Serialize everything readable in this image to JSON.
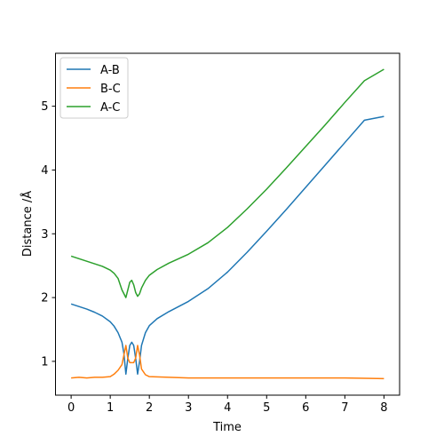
{
  "chart_data": {
    "type": "line",
    "title": "",
    "xlabel": "Time",
    "ylabel": "Distance /Å",
    "xlim": [
      -0.4,
      8.4
    ],
    "ylim": [
      0.47,
      5.83
    ],
    "xticks": [
      "0",
      "1",
      "2",
      "3",
      "4",
      "5",
      "6",
      "7",
      "8"
    ],
    "yticks": [
      "1",
      "2",
      "3",
      "4",
      "5"
    ],
    "grid": false,
    "legend_position": "top-left",
    "series": [
      {
        "name": "A-B",
        "color": "#1f77b4",
        "points": [
          [
            0,
            1.9
          ],
          [
            0.2,
            1.86
          ],
          [
            0.4,
            1.82
          ],
          [
            0.6,
            1.77
          ],
          [
            0.8,
            1.71
          ],
          [
            1.0,
            1.62
          ],
          [
            1.1,
            1.55
          ],
          [
            1.2,
            1.45
          ],
          [
            1.3,
            1.3
          ],
          [
            1.35,
            1.12
          ],
          [
            1.4,
            0.8
          ],
          [
            1.45,
            1.05
          ],
          [
            1.5,
            1.25
          ],
          [
            1.55,
            1.3
          ],
          [
            1.6,
            1.25
          ],
          [
            1.65,
            1.05
          ],
          [
            1.7,
            0.8
          ],
          [
            1.75,
            1.0
          ],
          [
            1.8,
            1.25
          ],
          [
            1.9,
            1.45
          ],
          [
            2.0,
            1.56
          ],
          [
            2.2,
            1.67
          ],
          [
            2.5,
            1.78
          ],
          [
            3.0,
            1.94
          ],
          [
            3.5,
            2.14
          ],
          [
            4.0,
            2.4
          ],
          [
            4.5,
            2.71
          ],
          [
            5.0,
            3.04
          ],
          [
            5.5,
            3.38
          ],
          [
            6.0,
            3.73
          ],
          [
            6.5,
            4.08
          ],
          [
            7.0,
            4.43
          ],
          [
            7.5,
            4.78
          ],
          [
            8.0,
            4.84
          ]
        ]
      },
      {
        "name": "B-C",
        "color": "#ff7f0e",
        "points": [
          [
            0,
            0.74
          ],
          [
            0.2,
            0.75
          ],
          [
            0.4,
            0.74
          ],
          [
            0.6,
            0.75
          ],
          [
            0.8,
            0.75
          ],
          [
            1.0,
            0.76
          ],
          [
            1.1,
            0.8
          ],
          [
            1.2,
            0.86
          ],
          [
            1.3,
            0.95
          ],
          [
            1.35,
            1.1
          ],
          [
            1.4,
            1.25
          ],
          [
            1.45,
            1.05
          ],
          [
            1.5,
            0.98
          ],
          [
            1.6,
            0.98
          ],
          [
            1.65,
            1.05
          ],
          [
            1.7,
            1.25
          ],
          [
            1.75,
            1.1
          ],
          [
            1.8,
            0.88
          ],
          [
            1.9,
            0.79
          ],
          [
            2.0,
            0.76
          ],
          [
            2.5,
            0.75
          ],
          [
            3.0,
            0.74
          ],
          [
            4.0,
            0.74
          ],
          [
            5.0,
            0.74
          ],
          [
            6.0,
            0.74
          ],
          [
            7.0,
            0.74
          ],
          [
            8.0,
            0.73
          ]
        ]
      },
      {
        "name": "A-C",
        "color": "#2ca02c",
        "points": [
          [
            0,
            2.65
          ],
          [
            0.2,
            2.61
          ],
          [
            0.4,
            2.57
          ],
          [
            0.6,
            2.53
          ],
          [
            0.8,
            2.49
          ],
          [
            1.0,
            2.43
          ],
          [
            1.1,
            2.38
          ],
          [
            1.2,
            2.3
          ],
          [
            1.3,
            2.12
          ],
          [
            1.4,
            2.0
          ],
          [
            1.45,
            2.12
          ],
          [
            1.5,
            2.24
          ],
          [
            1.55,
            2.27
          ],
          [
            1.6,
            2.2
          ],
          [
            1.65,
            2.08
          ],
          [
            1.7,
            2.02
          ],
          [
            1.75,
            2.06
          ],
          [
            1.8,
            2.15
          ],
          [
            1.9,
            2.27
          ],
          [
            2.0,
            2.35
          ],
          [
            2.2,
            2.44
          ],
          [
            2.5,
            2.54
          ],
          [
            3.0,
            2.68
          ],
          [
            3.5,
            2.86
          ],
          [
            4.0,
            3.1
          ],
          [
            4.5,
            3.39
          ],
          [
            5.0,
            3.7
          ],
          [
            5.5,
            4.03
          ],
          [
            6.0,
            4.37
          ],
          [
            6.5,
            4.71
          ],
          [
            7.0,
            5.06
          ],
          [
            7.5,
            5.4
          ],
          [
            8.0,
            5.58
          ]
        ]
      }
    ]
  }
}
